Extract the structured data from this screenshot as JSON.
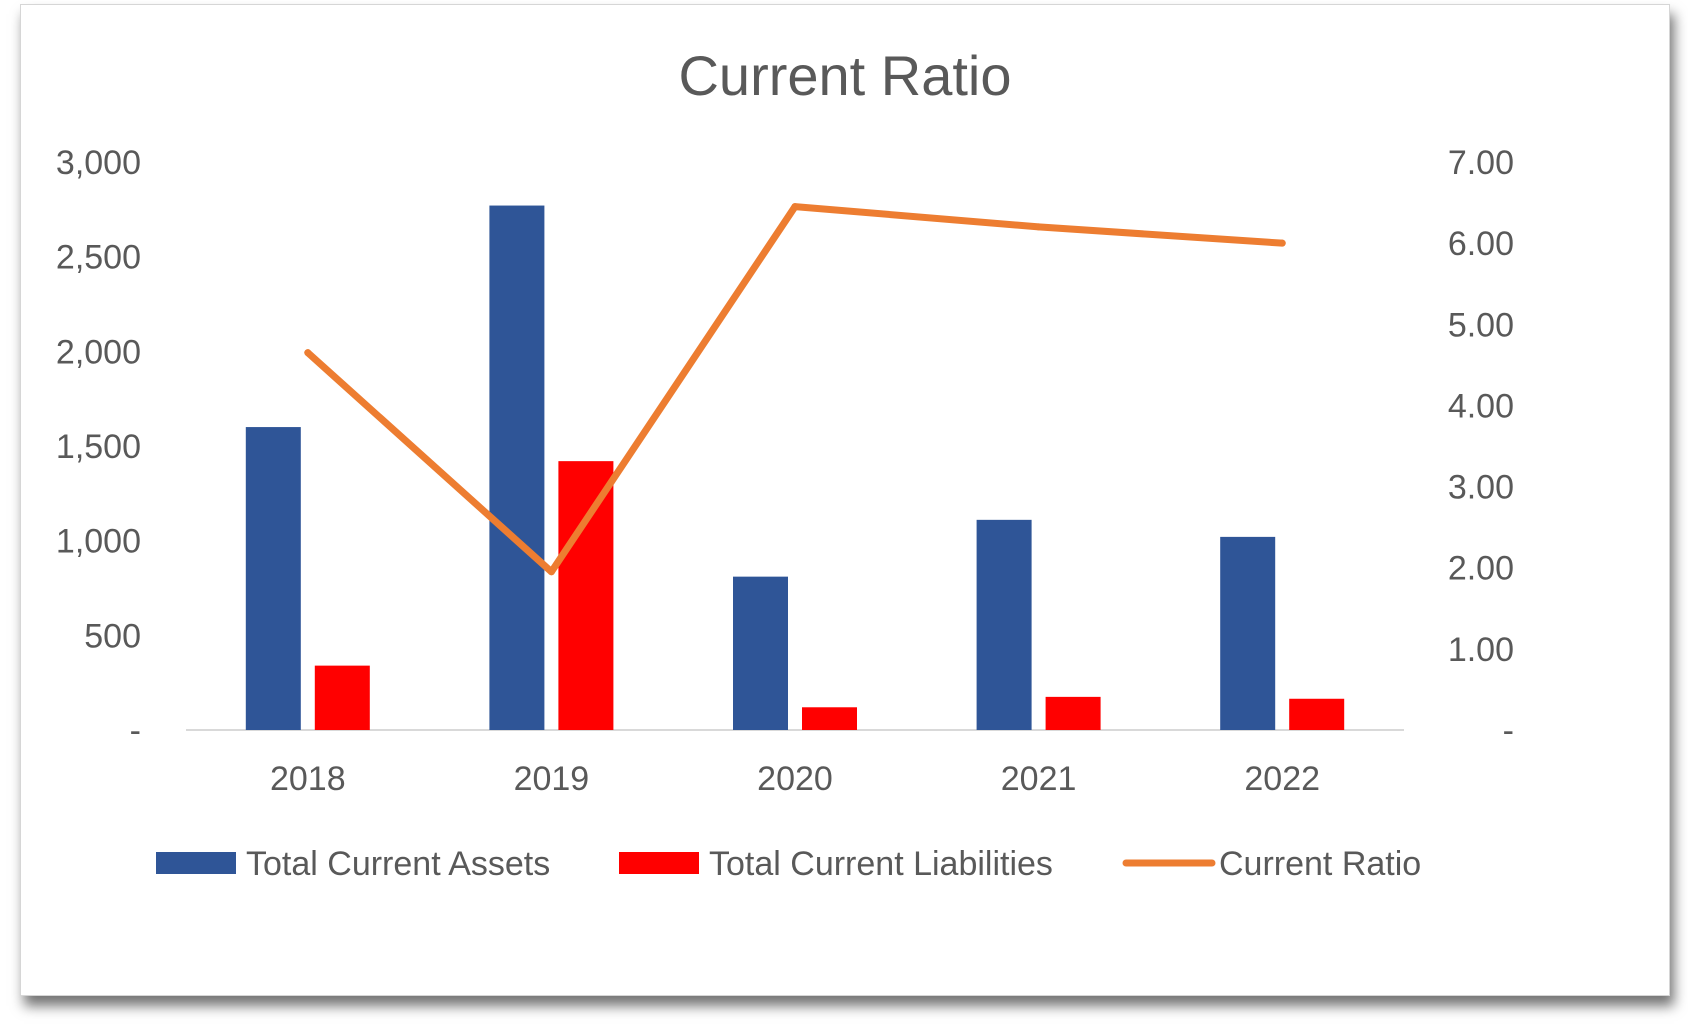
{
  "chart_data": {
    "type": "bar",
    "title": "Current Ratio",
    "categories": [
      "2018",
      "2019",
      "2020",
      "2021",
      "2022"
    ],
    "series": [
      {
        "name": "Total Current Assets",
        "type": "bar",
        "axis": "left",
        "color": "#2F5597",
        "values": [
          1600,
          2770,
          810,
          1110,
          1020
        ]
      },
      {
        "name": "Total Current Liabilities",
        "type": "bar",
        "axis": "left",
        "color": "#FF0000",
        "values": [
          340,
          1420,
          120,
          175,
          165
        ]
      },
      {
        "name": "Current Ratio",
        "type": "line",
        "axis": "right",
        "color": "#ED7D31",
        "values": [
          4.65,
          1.95,
          6.45,
          6.2,
          6.0
        ]
      }
    ],
    "y_left": {
      "ylim": [
        0,
        3000
      ],
      "ticks": [
        0,
        500,
        1000,
        1500,
        2000,
        2500,
        3000
      ],
      "tick_labels": [
        "-",
        "500",
        "1,000",
        "1,500",
        "2,000",
        "2,500",
        "3,000"
      ]
    },
    "y_right": {
      "ylim": [
        0,
        7
      ],
      "ticks": [
        0,
        1,
        2,
        3,
        4,
        5,
        6,
        7
      ],
      "tick_labels": [
        "-",
        "1.00",
        "2.00",
        "3.00",
        "4.00",
        "5.00",
        "6.00",
        "7.00"
      ]
    },
    "grid": false,
    "legend_position": "bottom"
  }
}
